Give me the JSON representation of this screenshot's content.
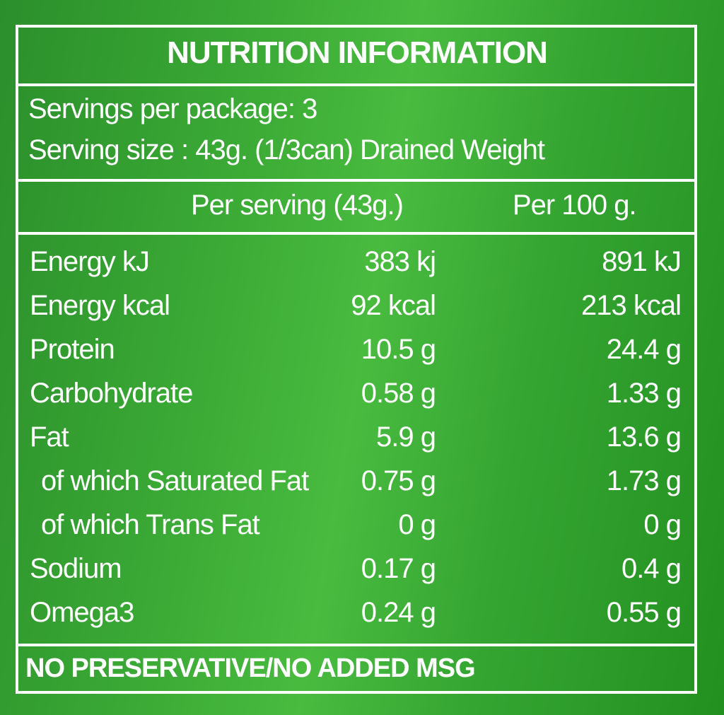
{
  "header": {
    "title": "NUTRITION INFORMATION"
  },
  "servings": {
    "per_package": "Servings per package: 3",
    "serving_size": "Serving size : 43g. (1/3can) Drained Weight"
  },
  "table": {
    "columns": [
      "Per serving (43g.)",
      "Per 100 g."
    ],
    "rows": [
      [
        "Energy kJ",
        "383 kj",
        "891 kJ"
      ],
      [
        "Energy kcal",
        "92 kcal",
        "213 kcal"
      ],
      [
        "Protein",
        "10.5 g",
        "24.4 g"
      ],
      [
        "Carbohydrate",
        "0.58 g",
        "1.33 g"
      ],
      [
        "Fat",
        "5.9 g",
        "13.6 g"
      ],
      [
        "of which Saturated Fat",
        "0.75 g",
        "1.73 g"
      ],
      [
        "of which Trans Fat",
        "0 g",
        "0 g"
      ],
      [
        "Sodium",
        "0.17 g",
        "0.4 g"
      ],
      [
        "Omega3",
        "0.24 g",
        "0.55 g"
      ]
    ]
  },
  "footer": {
    "note": "NO PRESERVATIVE/NO ADDED MSG"
  }
}
